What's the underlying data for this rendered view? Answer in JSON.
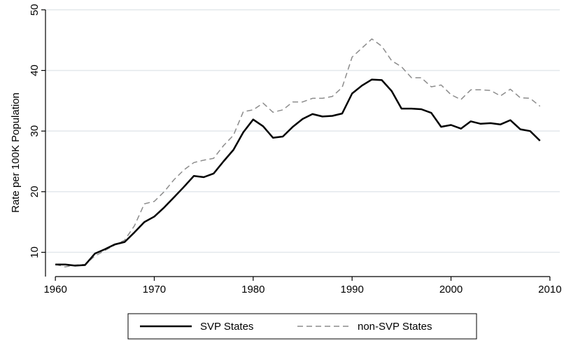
{
  "chart_data": {
    "type": "line",
    "xlabel": "",
    "ylabel": "Rate per 100K Population",
    "xlim": [
      1959,
      2011
    ],
    "ylim": [
      6,
      50
    ],
    "xticks": [
      1960,
      1970,
      1980,
      1990,
      2000,
      2010
    ],
    "yticks": [
      10,
      20,
      30,
      40,
      50
    ],
    "grid": "horizontal",
    "legend_position": "bottom",
    "x": [
      1960,
      1961,
      1962,
      1963,
      1964,
      1965,
      1966,
      1967,
      1968,
      1969,
      1970,
      1971,
      1972,
      1973,
      1974,
      1975,
      1976,
      1977,
      1978,
      1979,
      1980,
      1981,
      1982,
      1983,
      1984,
      1985,
      1986,
      1987,
      1988,
      1989,
      1990,
      1991,
      1992,
      1993,
      1994,
      1995,
      1996,
      1997,
      1998,
      1999,
      2000,
      2001,
      2002,
      2003,
      2004,
      2005,
      2006,
      2007,
      2008,
      2009
    ],
    "series": [
      {
        "name": "SVP States",
        "color": "#000000",
        "style": "solid",
        "values": [
          8.0,
          8.0,
          7.8,
          7.9,
          9.8,
          10.5,
          11.3,
          11.7,
          13.3,
          15.0,
          15.9,
          17.4,
          19.1,
          20.8,
          22.6,
          22.4,
          23.0,
          25.0,
          26.9,
          29.8,
          31.9,
          30.8,
          28.9,
          29.1,
          30.7,
          32.0,
          32.8,
          32.4,
          32.5,
          32.9,
          36.2,
          37.5,
          38.5,
          38.4,
          36.6,
          33.7,
          33.7,
          33.6,
          33.0,
          30.7,
          31.0,
          30.4,
          31.6,
          31.2,
          31.3,
          31.1,
          31.8,
          30.3,
          30.0,
          28.4
        ]
      },
      {
        "name": "non-SVP States",
        "color": "#8c8c8c",
        "style": "dashed",
        "values": [
          8.0,
          7.6,
          7.9,
          8.0,
          9.4,
          10.3,
          11.2,
          12.0,
          14.4,
          18.0,
          18.4,
          20.0,
          22.0,
          23.6,
          24.8,
          25.2,
          25.5,
          27.6,
          29.3,
          33.2,
          33.5,
          34.6,
          33.1,
          33.5,
          34.8,
          34.8,
          35.4,
          35.4,
          35.7,
          37.2,
          42.2,
          43.7,
          45.2,
          44.0,
          41.6,
          40.6,
          38.8,
          38.8,
          37.3,
          37.6,
          36.0,
          35.2,
          36.8,
          36.8,
          36.7,
          35.8,
          36.9,
          35.5,
          35.4,
          34.1
        ]
      }
    ]
  }
}
